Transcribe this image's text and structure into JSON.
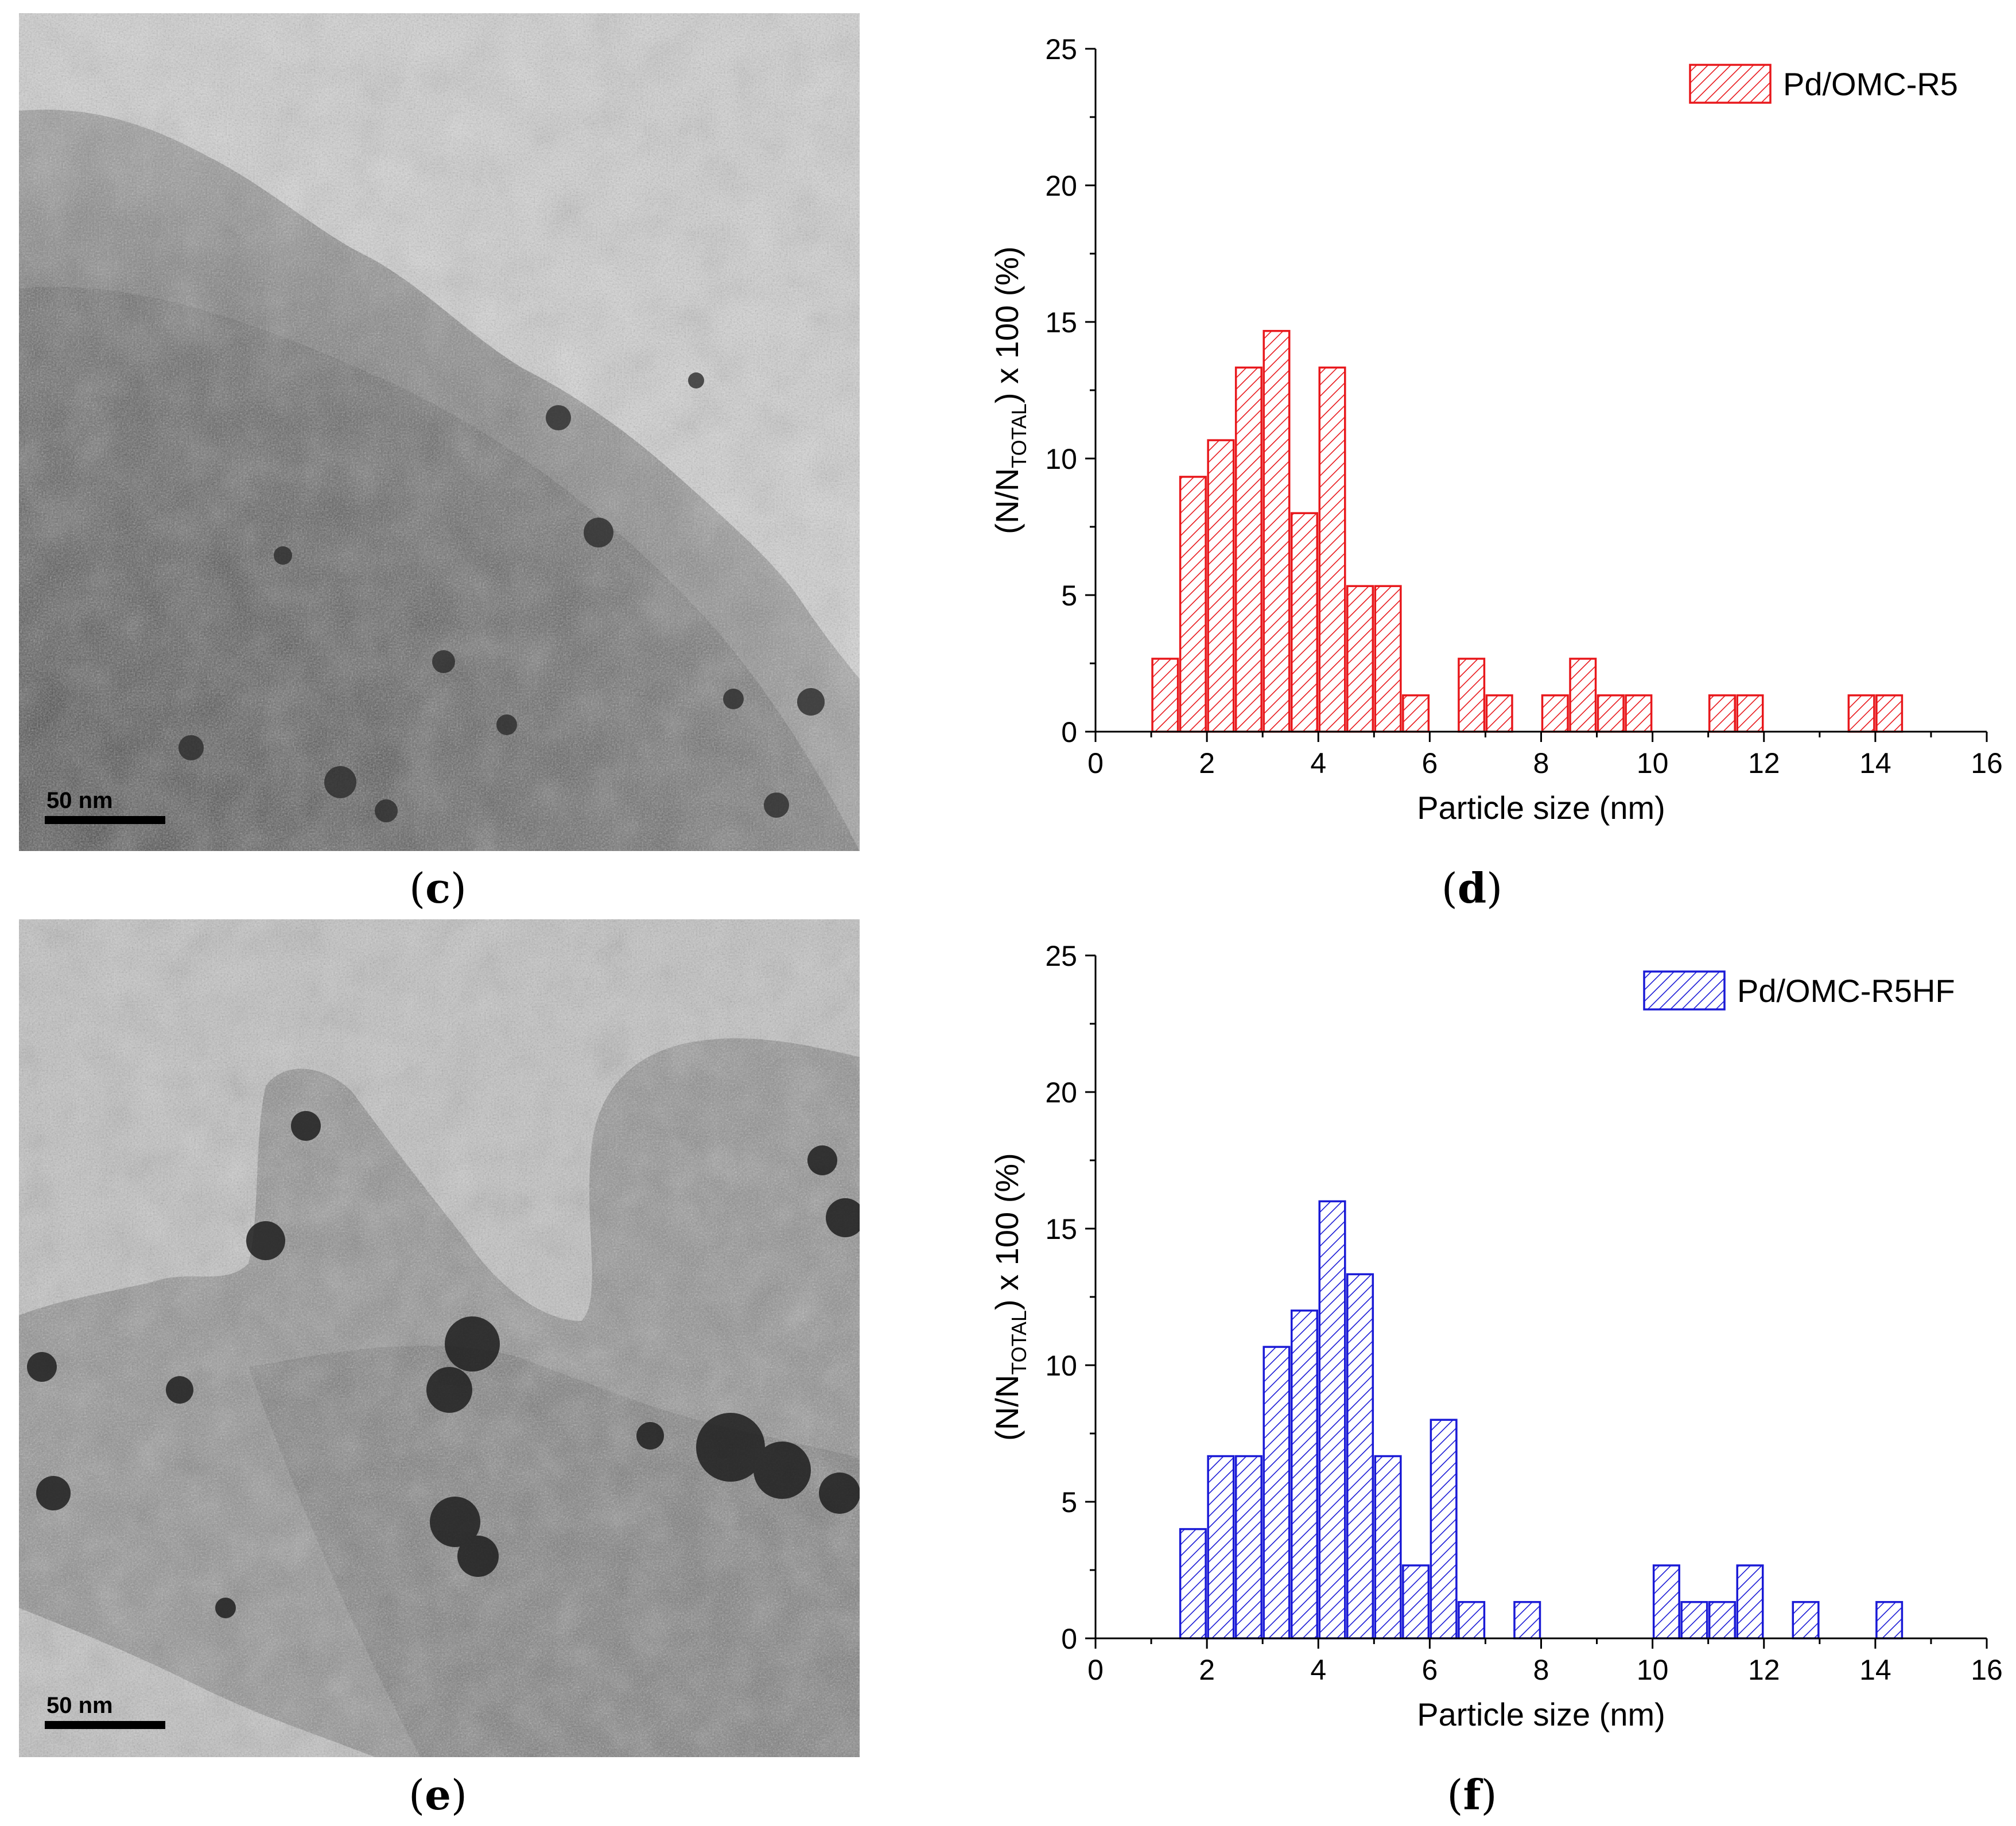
{
  "panels": {
    "c": {
      "label": "c",
      "scalebar": "50 nm"
    },
    "d": {
      "label": "d"
    },
    "e": {
      "label": "e",
      "scalebar": "50 nm"
    },
    "f": {
      "label": "f"
    }
  },
  "colors": {
    "red": "#e8181c",
    "blue": "#1a1ad6"
  },
  "chart_data": [
    {
      "id": "d",
      "type": "bar",
      "xlabel": "Particle size (nm)",
      "ylabel_main": "(N/N",
      "ylabel_sub": "TOTAL",
      "ylabel_tail": ") x 100 (%)",
      "xlim": [
        0,
        16
      ],
      "ylim": [
        0,
        25
      ],
      "xticks": [
        0,
        2,
        4,
        6,
        8,
        10,
        12,
        14,
        16
      ],
      "yticks": [
        0,
        5,
        10,
        15,
        20,
        25
      ],
      "bin_width": 0.5,
      "series": [
        {
          "name": "Pd/OMC-R5",
          "color": "#e8181c",
          "bins": [
            {
              "x": 1.25,
              "value": 2.67
            },
            {
              "x": 1.75,
              "value": 9.33
            },
            {
              "x": 2.25,
              "value": 10.67
            },
            {
              "x": 2.75,
              "value": 13.33
            },
            {
              "x": 3.25,
              "value": 14.67
            },
            {
              "x": 3.75,
              "value": 8.0
            },
            {
              "x": 4.25,
              "value": 13.33
            },
            {
              "x": 4.75,
              "value": 5.33
            },
            {
              "x": 5.25,
              "value": 5.33
            },
            {
              "x": 5.75,
              "value": 1.33
            },
            {
              "x": 6.75,
              "value": 2.67
            },
            {
              "x": 7.25,
              "value": 1.33
            },
            {
              "x": 8.25,
              "value": 1.33
            },
            {
              "x": 8.75,
              "value": 2.67
            },
            {
              "x": 9.25,
              "value": 1.33
            },
            {
              "x": 9.75,
              "value": 1.33
            },
            {
              "x": 11.25,
              "value": 1.33
            },
            {
              "x": 11.75,
              "value": 1.33
            },
            {
              "x": 13.75,
              "value": 1.33
            },
            {
              "x": 14.25,
              "value": 1.33
            }
          ]
        }
      ]
    },
    {
      "id": "f",
      "type": "bar",
      "xlabel": "Particle size (nm)",
      "ylabel_main": "(N/N",
      "ylabel_sub": "TOTAL",
      "ylabel_tail": ") x 100 (%)",
      "xlim": [
        0,
        16
      ],
      "ylim": [
        0,
        25
      ],
      "xticks": [
        0,
        2,
        4,
        6,
        8,
        10,
        12,
        14,
        16
      ],
      "yticks": [
        0,
        5,
        10,
        15,
        20,
        25
      ],
      "bin_width": 0.5,
      "series": [
        {
          "name": "Pd/OMC-R5HF",
          "color": "#1a1ad6",
          "bins": [
            {
              "x": 1.75,
              "value": 4.0
            },
            {
              "x": 2.25,
              "value": 6.67
            },
            {
              "x": 2.75,
              "value": 6.67
            },
            {
              "x": 3.25,
              "value": 10.67
            },
            {
              "x": 3.75,
              "value": 12.0
            },
            {
              "x": 4.25,
              "value": 16.0
            },
            {
              "x": 4.75,
              "value": 13.33
            },
            {
              "x": 5.25,
              "value": 6.67
            },
            {
              "x": 5.75,
              "value": 2.67
            },
            {
              "x": 6.25,
              "value": 8.0
            },
            {
              "x": 6.75,
              "value": 1.33
            },
            {
              "x": 7.75,
              "value": 1.33
            },
            {
              "x": 10.25,
              "value": 2.67
            },
            {
              "x": 10.75,
              "value": 1.33
            },
            {
              "x": 11.25,
              "value": 1.33
            },
            {
              "x": 11.75,
              "value": 2.67
            },
            {
              "x": 12.75,
              "value": 1.33
            },
            {
              "x": 14.25,
              "value": 1.33
            }
          ]
        }
      ]
    }
  ]
}
